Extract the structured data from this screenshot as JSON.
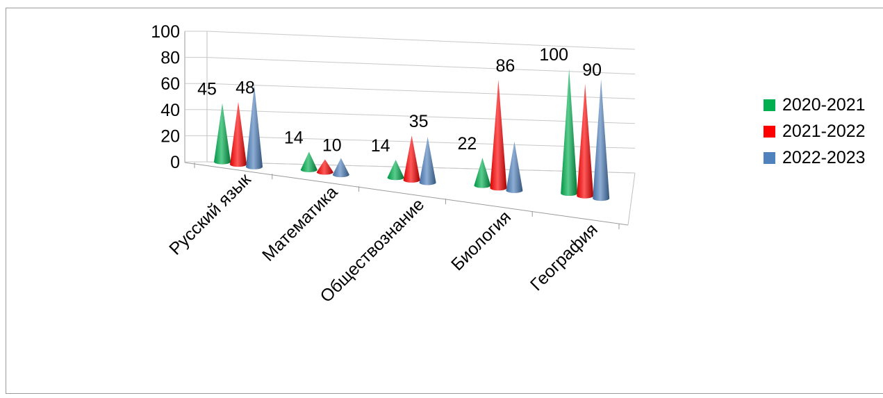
{
  "chart_data": {
    "type": "bar",
    "shape": "cone",
    "perspective": "3d",
    "categories": [
      "Русский язык",
      "Математика",
      "Обществознание",
      "Биология",
      "География"
    ],
    "series": [
      {
        "name": "2020-2021",
        "color": "#00b050",
        "values": [
          45,
          14,
          14,
          22,
          100
        ]
      },
      {
        "name": "2021-2022",
        "color": "#ff0000",
        "values": [
          48,
          10,
          35,
          86,
          90
        ]
      },
      {
        "name": "2022-2023",
        "color": "#4f81bd",
        "values": [
          63,
          13,
          36,
          39,
          96
        ]
      }
    ],
    "data_labels": [
      {
        "series": 0,
        "category": 0,
        "text": "45"
      },
      {
        "series": 1,
        "category": 0,
        "text": "48"
      },
      {
        "series": 0,
        "category": 1,
        "text": "14"
      },
      {
        "series": 1,
        "category": 1,
        "text": "10"
      },
      {
        "series": 0,
        "category": 2,
        "text": "14"
      },
      {
        "series": 1,
        "category": 2,
        "text": "35"
      },
      {
        "series": 0,
        "category": 3,
        "text": "22"
      },
      {
        "series": 1,
        "category": 3,
        "text": "86"
      },
      {
        "series": 0,
        "category": 4,
        "text": "100"
      },
      {
        "series": 1,
        "category": 4,
        "text": "90"
      }
    ],
    "y_ticks": [
      "0",
      "20",
      "40",
      "60",
      "80",
      "100"
    ],
    "ylim": [
      0,
      100
    ],
    "grid": true,
    "legend_position": "right",
    "title": "",
    "xlabel": "",
    "ylabel": ""
  }
}
